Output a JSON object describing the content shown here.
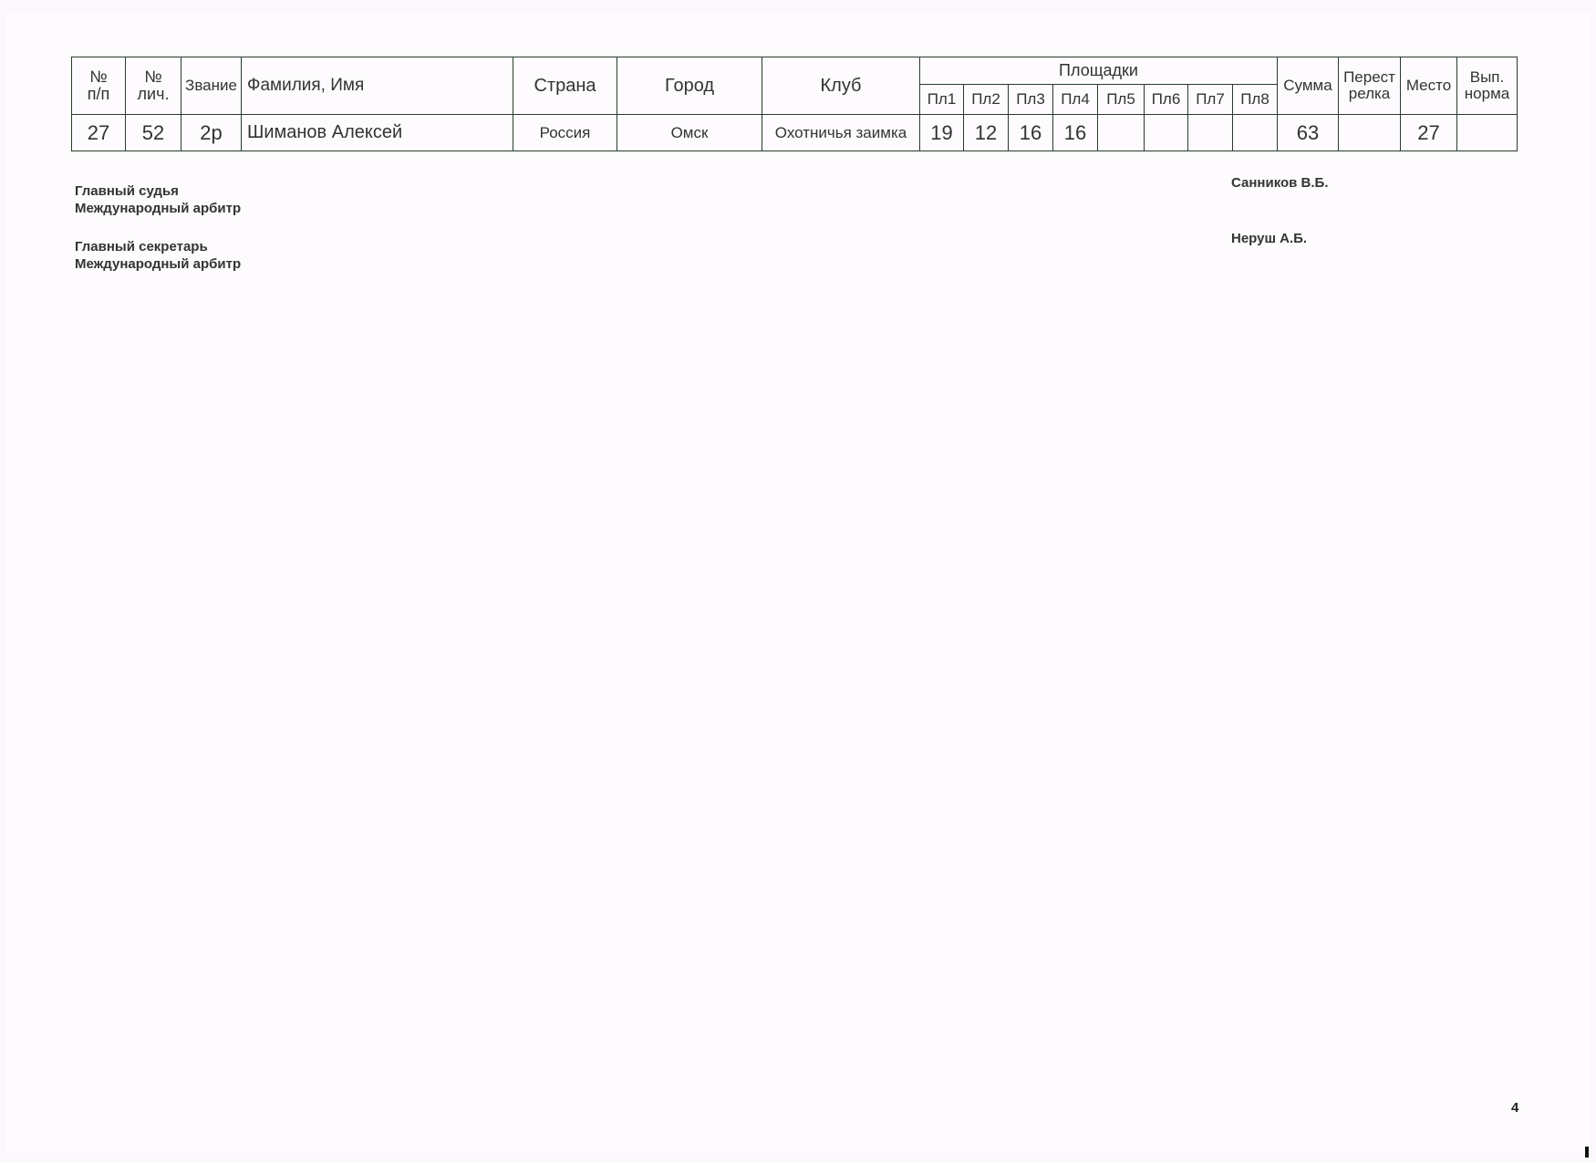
{
  "table": {
    "headers": {
      "num": "№ п/п",
      "num_a": "№",
      "num_b": "п/п",
      "lic_a": "№",
      "lic_b": "лич.",
      "rank": "Звание",
      "name": "Фамилия, Имя",
      "country": "Страна",
      "city": "Город",
      "club": "Клуб",
      "sites": "Площадки",
      "site_cols": [
        "Пл1",
        "Пл2",
        "Пл3",
        "Пл4",
        "Пл5",
        "Пл6",
        "Пл7",
        "Пл8"
      ],
      "sum": "Сумма",
      "shootoff_a": "Перест",
      "shootoff_b": "релка",
      "place": "Место",
      "norm_a": "Вып.",
      "norm_b": "норма"
    },
    "rows": [
      {
        "num": "27",
        "lic": "52",
        "rank": "2р",
        "name": "Шиманов Алексей",
        "country": "Россия",
        "city": "Омск",
        "club": "Охотничья заимка",
        "sites": [
          "19",
          "12",
          "16",
          "16",
          "",
          "",
          "",
          ""
        ],
        "sum": "63",
        "shootoff": "",
        "place": "27",
        "norm": ""
      }
    ]
  },
  "signatures": {
    "judge_title": "Главный судья",
    "judge_rank": "Международный арбитр",
    "judge_name": "Санников В.Б.",
    "secretary_title": "Главный секретарь",
    "secretary_rank": "Международный арбитр",
    "secretary_name": "Неруш А.Б."
  },
  "page_number": "4"
}
